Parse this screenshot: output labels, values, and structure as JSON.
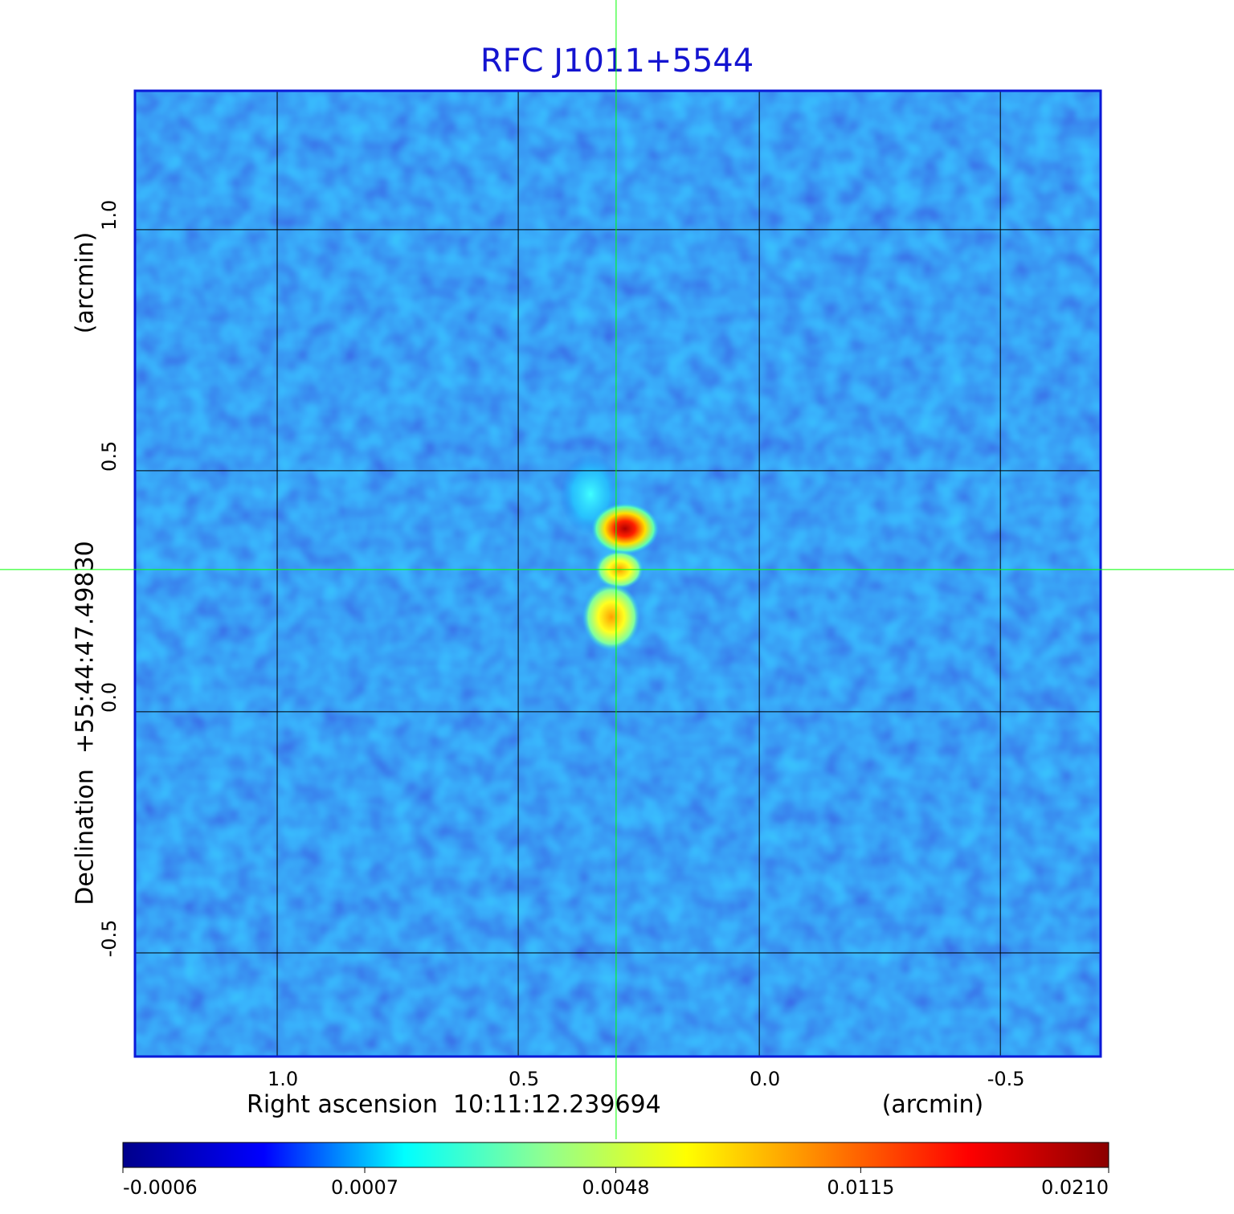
{
  "chart_data": {
    "type": "image",
    "title": "RFC J1011+5544",
    "x_label": "Right ascension  10:11:12.239694",
    "x_unit": "(arcmin)",
    "y_label": "Declination  +55:44:47.49830",
    "y_unit": "(arcmin)",
    "xlim": [
      1.295,
      -0.708
    ],
    "ylim": [
      -0.715,
      1.288
    ],
    "xticks": [
      {
        "value": 1,
        "label": "1.0"
      },
      0.5,
      {
        "value": 0,
        "label": "0.0"
      },
      -0.5
    ],
    "yticks": [
      {
        "value": 1,
        "label": "1.0"
      },
      0.5,
      {
        "value": 0,
        "label": "0.0"
      },
      -0.5
    ],
    "grid": true,
    "crosshair": {
      "x": 0.297,
      "y": 0.295,
      "color": "#00ff00"
    },
    "colorbar": {
      "scale": "sqrt",
      "lim": [
        -0.0006,
        0.021
      ],
      "ticks": [
        -0.0006,
        0.0007,
        0.0048,
        0.0115,
        {
          "value": 0.021,
          "label": "0.0210"
        }
      ],
      "colors": [
        "#00008b",
        "#0000ff",
        "#00ffff",
        "#90ff90",
        "#ffff00",
        "#ff8000",
        "#ff0000",
        "#8b0000"
      ]
    }
  }
}
